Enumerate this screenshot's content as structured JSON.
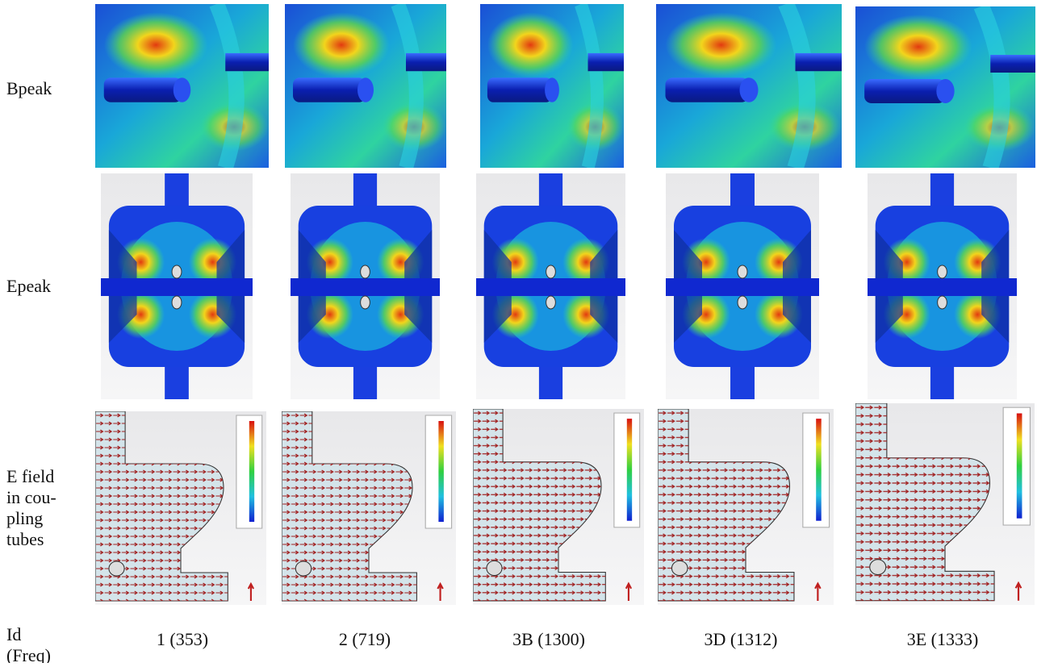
{
  "rows": [
    {
      "label_lines": [
        "Bpeak"
      ]
    },
    {
      "label_lines": [
        "Epeak"
      ]
    },
    {
      "label_lines": [
        "E field",
        "in cou-",
        "pling",
        "tubes"
      ]
    },
    {
      "label_lines": [
        "Id",
        "(Freq)"
      ]
    }
  ],
  "columns": [
    "1 (353)",
    "2 (719)",
    "3B (1300)",
    "3D (1312)",
    "3E (1333)"
  ]
}
